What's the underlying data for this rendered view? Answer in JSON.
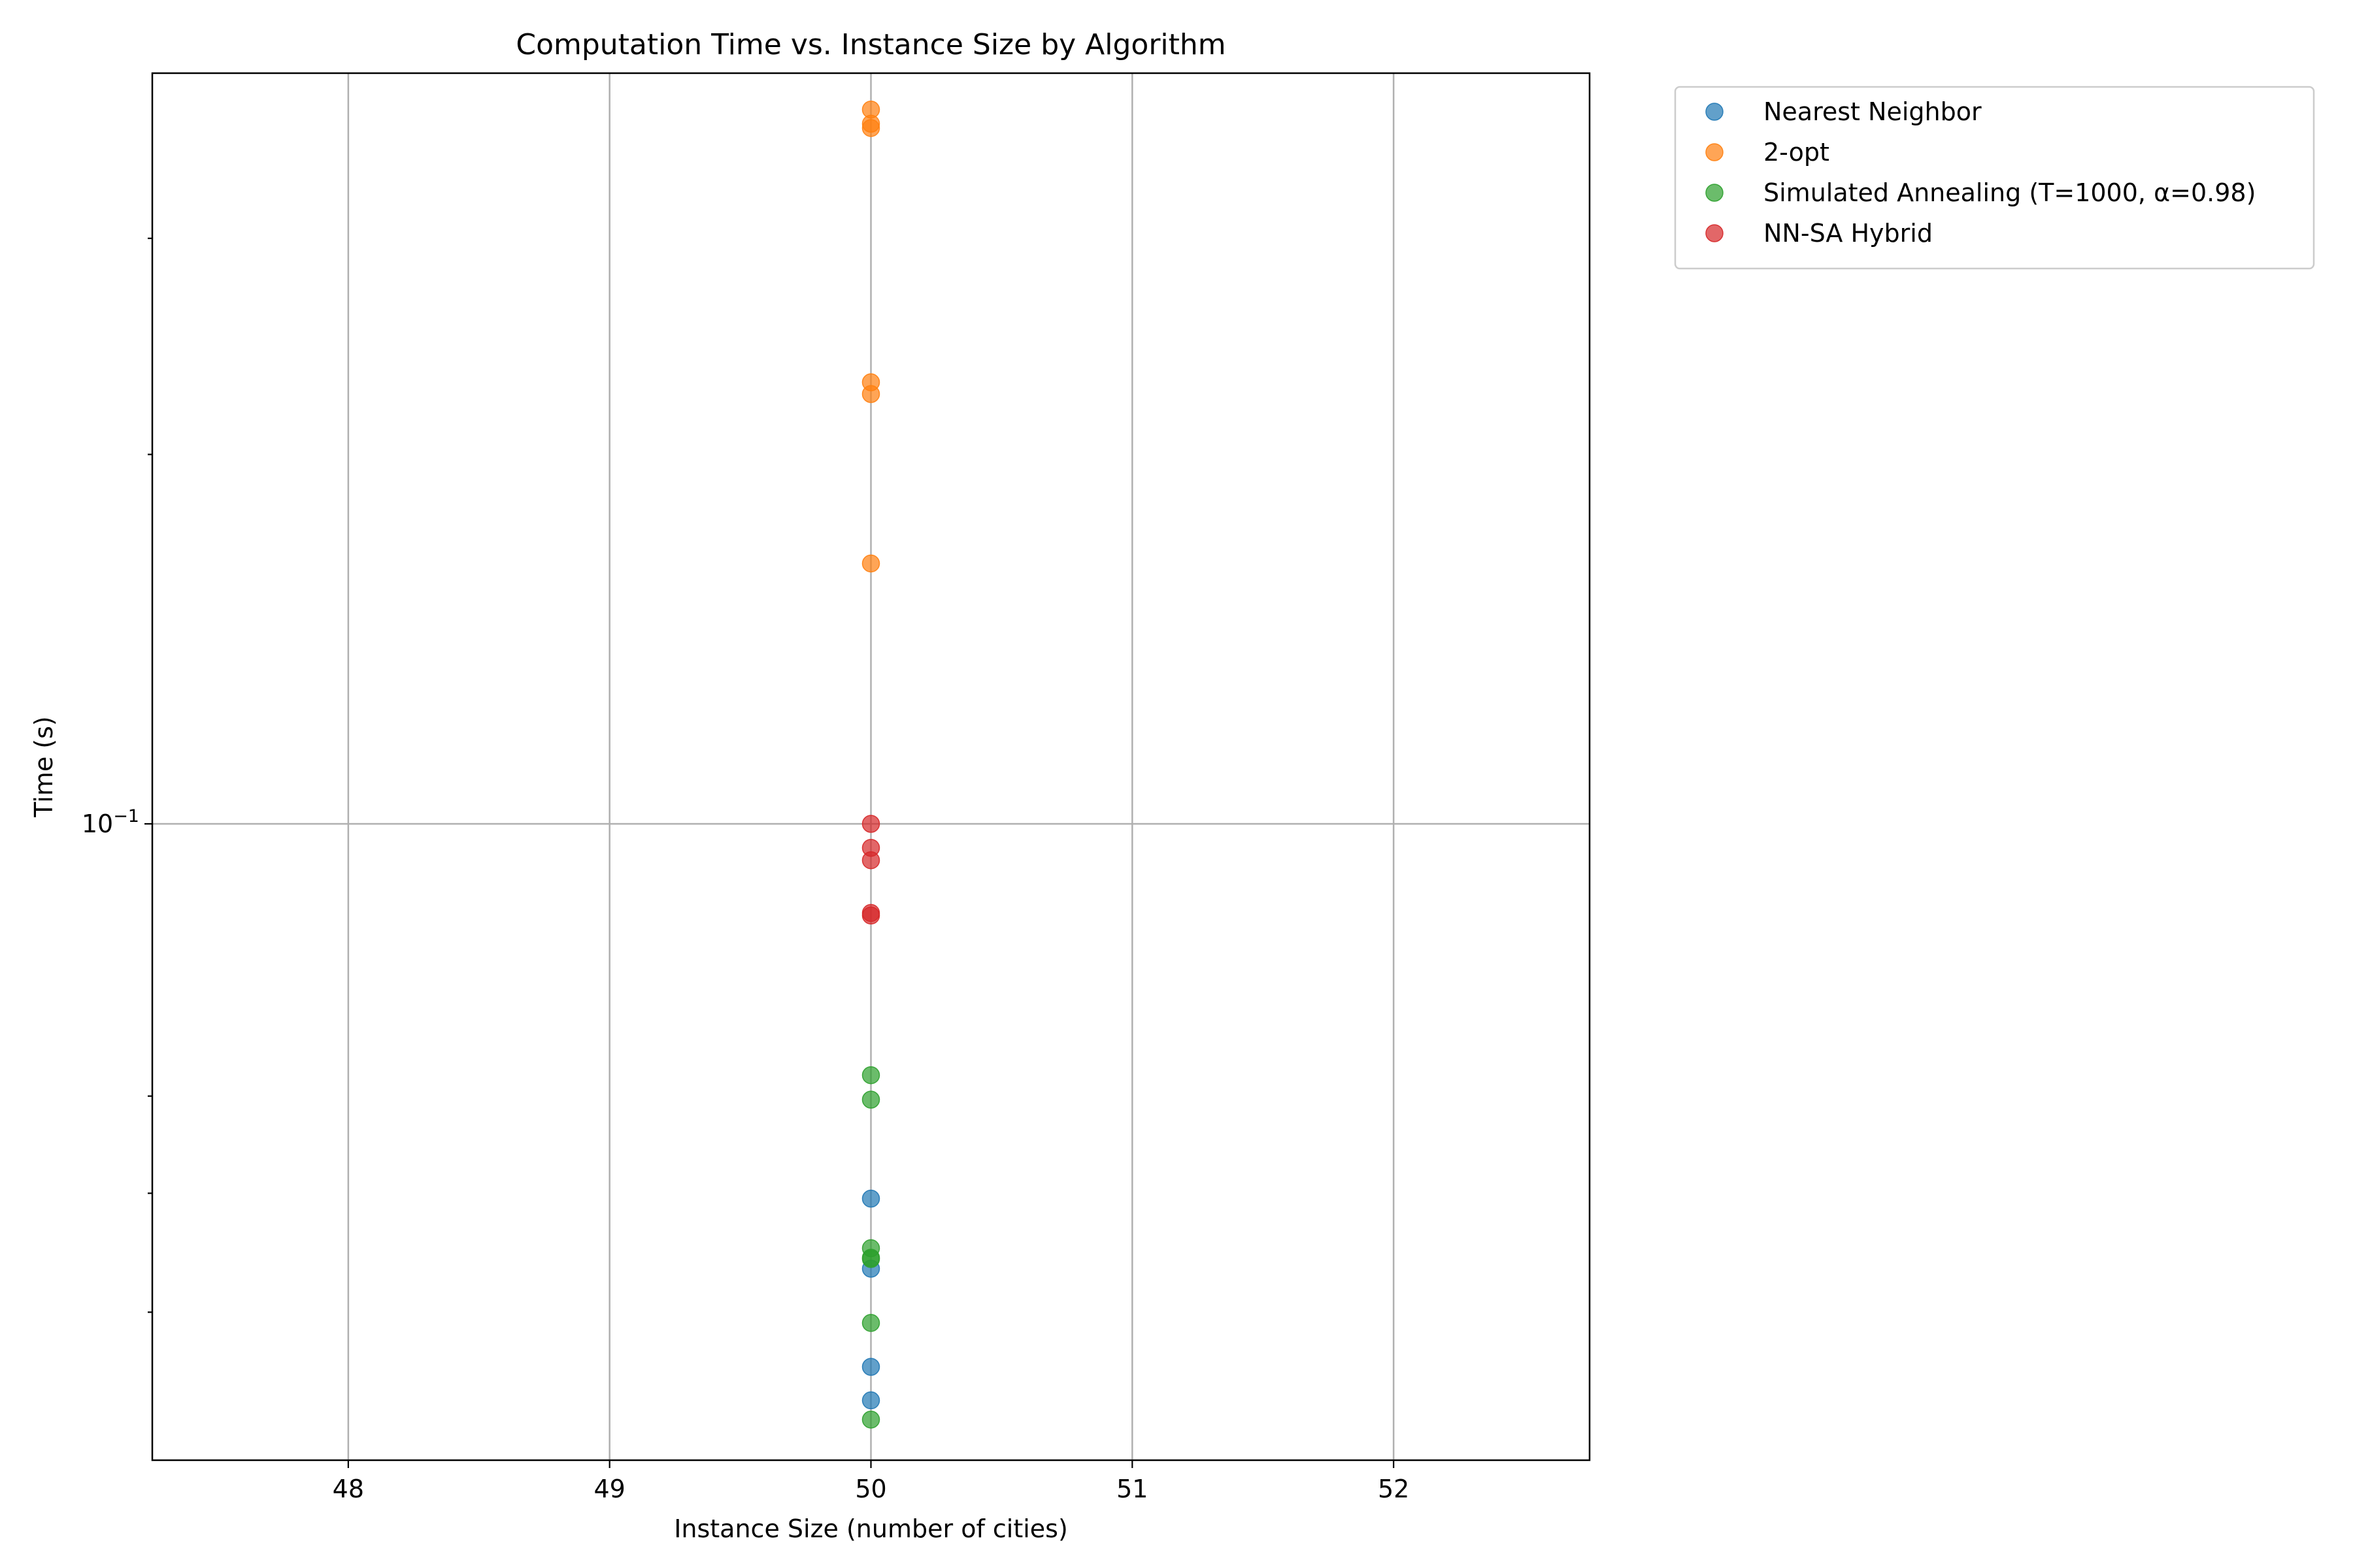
{
  "chart_data": {
    "type": "scatter",
    "title": "Computation Time vs. Instance Size by Algorithm",
    "xlabel": "Instance Size (number of cities)",
    "ylabel": "Time (s)",
    "x_scale": "linear",
    "y_scale": "log",
    "xlim": [
      47.25,
      52.75
    ],
    "ylim": [
      0.0303,
      0.409
    ],
    "x_ticks": [
      48,
      49,
      50,
      51,
      52
    ],
    "x_tick_labels": [
      "48",
      "49",
      "50",
      "51",
      "52"
    ],
    "y_major_ticks": [
      0.1
    ],
    "y_major_tick_labels": [
      "10"
    ],
    "y_major_tick_exponent": "−1",
    "y_minor_ticks": [
      0.04,
      0.05,
      0.06,
      0.2,
      0.3
    ],
    "grid": true,
    "legend_position": "outside-top-right",
    "series": [
      {
        "name": "Nearest Neighbor",
        "color": "#1f77b4",
        "x": [
          50,
          50,
          50,
          50
        ],
        "y": [
          0.0495,
          0.0434,
          0.0361,
          0.0339
        ]
      },
      {
        "name": "2-opt",
        "color": "#ff7f0e",
        "x": [
          50,
          50,
          50,
          50,
          50,
          50
        ],
        "y": [
          0.382,
          0.372,
          0.369,
          0.229,
          0.224,
          0.163
        ]
      },
      {
        "name": "Simulated Annealing (T=1000, α=0.98)",
        "color": "#2ca02c",
        "x": [
          50,
          50,
          50,
          50,
          50,
          50,
          50
        ],
        "y": [
          0.0624,
          0.0596,
          0.0451,
          0.0443,
          0.0442,
          0.0392,
          0.0327
        ]
      },
      {
        "name": "NN-SA Hybrid",
        "color": "#d62728",
        "x": [
          50,
          50,
          50,
          50,
          50
        ],
        "y": [
          0.1,
          0.0956,
          0.0934,
          0.0846,
          0.0842
        ]
      }
    ]
  }
}
